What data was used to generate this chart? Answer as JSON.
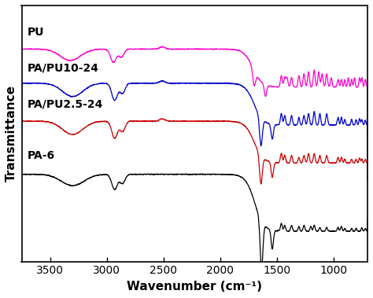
{
  "xlabel": "Wavenumber (cm⁻¹)",
  "ylabel": "Transmittance",
  "xlim": [
    700,
    3750
  ],
  "background_color": "#ffffff",
  "series": [
    {
      "label": "PU",
      "color": "#ff00cc"
    },
    {
      "label": "PA/PU10-24",
      "color": "#0000cc"
    },
    {
      "label": "PA/PU2.5-24",
      "color": "#cc0000"
    },
    {
      "label": "PA-6",
      "color": "#000000"
    }
  ],
  "label_fontsize": 10,
  "tick_fontsize": 10
}
